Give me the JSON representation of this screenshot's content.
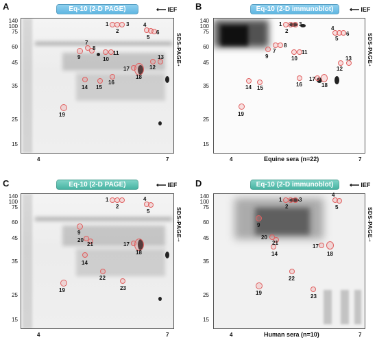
{
  "panels": [
    {
      "letter": "A",
      "title": "Eq-10 (2-D PAGE)",
      "style": "blue",
      "caption": ""
    },
    {
      "letter": "B",
      "title": "Eq-10 (2-D immunoblot)",
      "style": "blue",
      "caption": "Equine sera (n=22)"
    },
    {
      "letter": "C",
      "title": "Eq-10 (2-D PAGE)",
      "style": "teal",
      "caption": ""
    },
    {
      "letter": "D",
      "title": "Eq-10 (2-D immunoblot)",
      "style": "teal",
      "caption": "Human sera (n=10)"
    }
  ],
  "ief_label": "IEF",
  "sds_label": "SDS-PAGE",
  "mw_markers": [
    "140",
    "100",
    "75",
    "60",
    "45",
    "35",
    "25",
    "15"
  ],
  "ph_labels": {
    "left": "4",
    "right": "7"
  },
  "spots": {
    "A": [
      "1",
      "2",
      "3",
      "4",
      "5",
      "6",
      "7",
      "8",
      "9",
      "10",
      "11",
      "12",
      "13",
      "14",
      "15",
      "16",
      "17",
      "18",
      "19"
    ],
    "B": [
      "1",
      "2",
      "3",
      "4",
      "5",
      "6",
      "7",
      "8",
      "9",
      "10",
      "11",
      "12",
      "13",
      "14",
      "15",
      "16",
      "17",
      "18",
      "19"
    ],
    "C": [
      "1",
      "2",
      "4",
      "5",
      "9",
      "14",
      "17",
      "18",
      "19",
      "20",
      "21",
      "22",
      "23"
    ],
    "D": [
      "1",
      "2",
      "3",
      "4",
      "5",
      "9",
      "14",
      "17",
      "18",
      "19",
      "20",
      "21",
      "22",
      "23"
    ]
  }
}
